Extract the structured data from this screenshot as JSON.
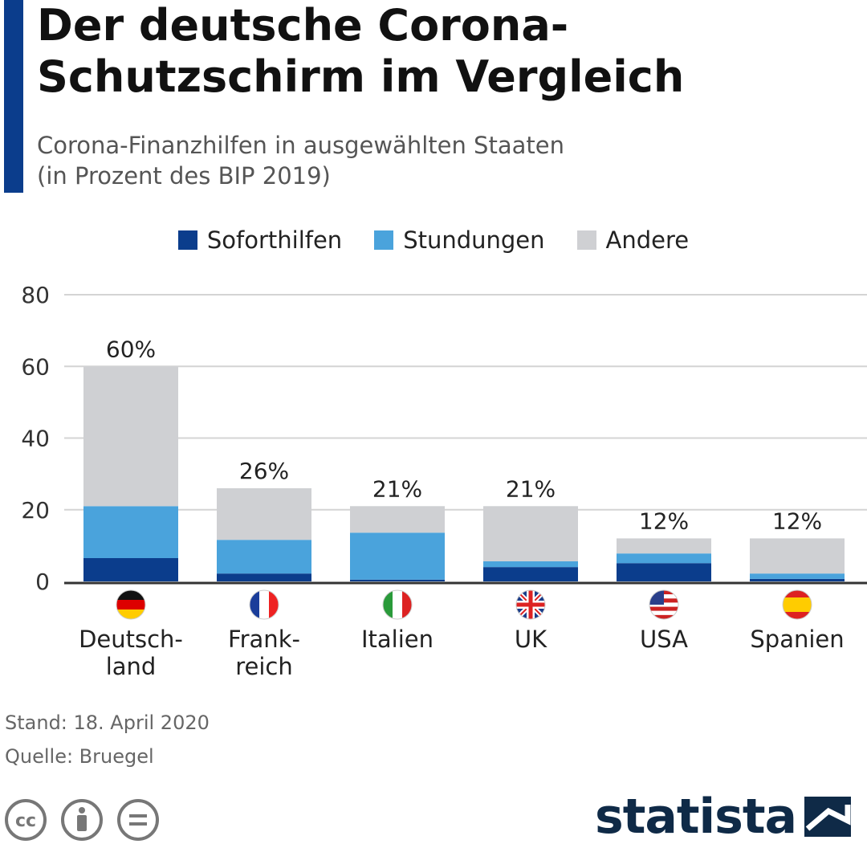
{
  "title_lines": [
    "Der deutsche Corona-",
    "Schutzschirm im Vergleich"
  ],
  "subtitle_lines": [
    "Corona-Finanzhilfen in ausgewählten Staaten",
    "(in Prozent des BIP 2019)"
  ],
  "footer": {
    "stand": "Stand: 18. April 2020",
    "quelle": "Quelle: Bruegel"
  },
  "logo": "statista",
  "license_icons": [
    "cc-icon",
    "by-icon",
    "nd-icon"
  ],
  "colors": {
    "accent": "#0b3d8c",
    "Soforthilfen": "#0b3d8c",
    "Stundungen": "#4aa3dc",
    "Andere": "#cfd0d3"
  },
  "chart_data": {
    "type": "bar",
    "stacked": true,
    "title": "Der deutsche Corona-Schutzschirm im Vergleich",
    "subtitle": "Corona-Finanzhilfen in ausgewählten Staaten (in Prozent des BIP 2019)",
    "categories": [
      "Deutsch-\nland",
      "Frank-\nreich",
      "Italien",
      "UK",
      "USA",
      "Spanien"
    ],
    "flags": [
      "de",
      "fr",
      "it",
      "uk",
      "us",
      "es"
    ],
    "series": [
      {
        "name": "Soforthilfen",
        "color": "#0b3d8c",
        "values": [
          6.5,
          2.2,
          0.5,
          4.0,
          5.1,
          0.7
        ]
      },
      {
        "name": "Stundungen",
        "color": "#4aa3dc",
        "values": [
          14.5,
          9.4,
          13.1,
          1.6,
          2.7,
          1.5
        ]
      },
      {
        "name": "Andere",
        "color": "#cfd0d3",
        "values": [
          39.0,
          14.4,
          7.4,
          15.4,
          4.2,
          9.8
        ]
      }
    ],
    "totals": [
      60,
      26,
      21,
      21,
      12,
      12
    ],
    "total_labels": [
      "60%",
      "26%",
      "21%",
      "21%",
      "12%",
      "12%"
    ],
    "ylim": [
      0,
      80
    ],
    "yticks": [
      0,
      20,
      40,
      60,
      80
    ],
    "grid": true,
    "legend": "top-center"
  }
}
